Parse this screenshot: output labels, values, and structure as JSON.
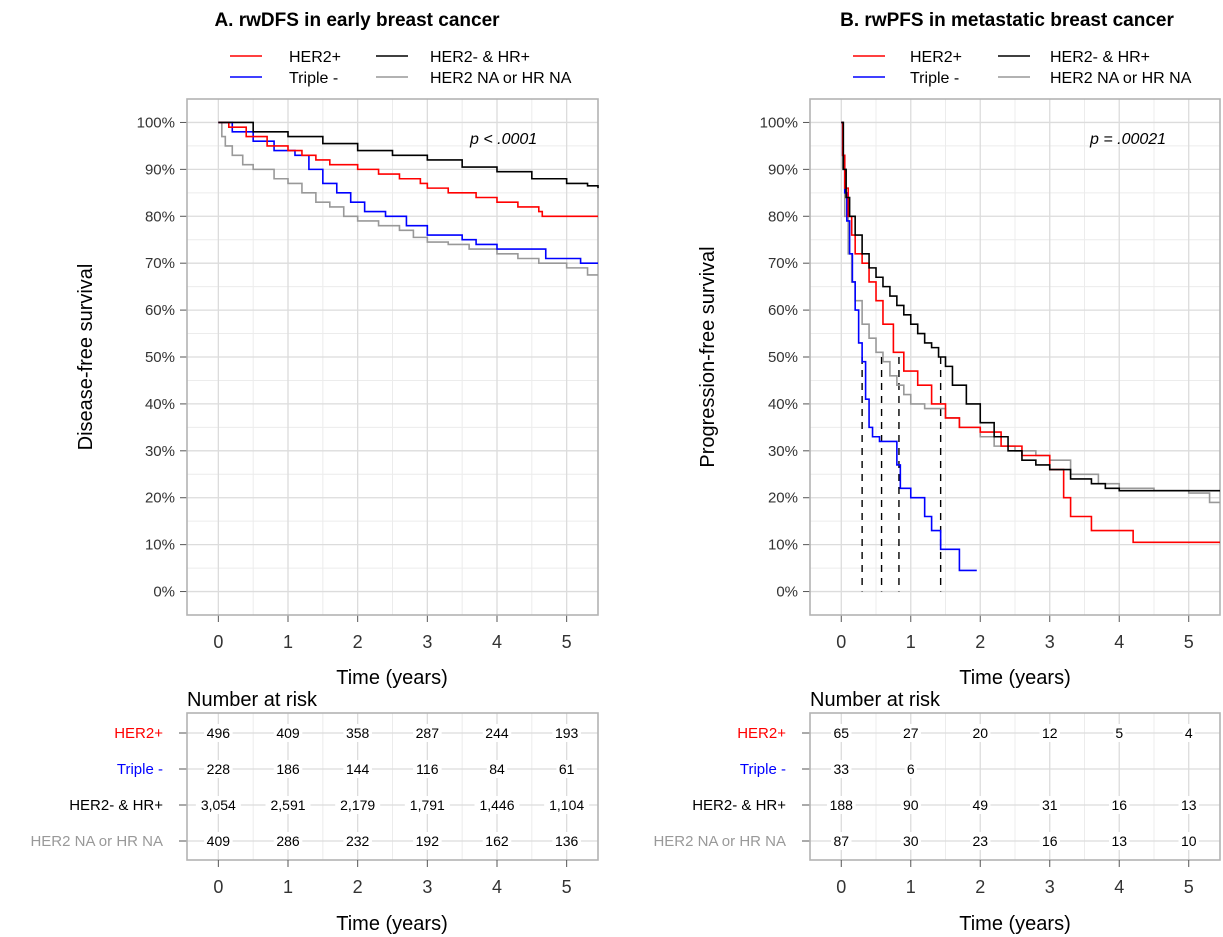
{
  "chart_data": [
    {
      "type": "line",
      "title": "A. rwDFS in early breast cancer",
      "xlabel": "Time (years)",
      "ylabel": "Disease-free survival",
      "xlim": [
        -0.45,
        5.45
      ],
      "ylim": [
        -0.05,
        1.05
      ],
      "x_ticks": [
        "0",
        "1",
        "2",
        "3",
        "4",
        "5"
      ],
      "y_ticks": [
        "0%",
        "10%",
        "20%",
        "30%",
        "40%",
        "50%",
        "60%",
        "70%",
        "80%",
        "90%",
        "100%"
      ],
      "annotation_p": "p < .0001",
      "grid": true,
      "legend_position": "top",
      "series": [
        {
          "name": "HER2+",
          "color": "#ff0000",
          "x": [
            0,
            0.15,
            0.4,
            0.7,
            1.0,
            1.2,
            1.4,
            1.6,
            2.0,
            2.3,
            2.6,
            2.9,
            3.0,
            3.3,
            3.7,
            4.0,
            4.3,
            4.6,
            4.65,
            5.45
          ],
          "y": [
            1.0,
            0.99,
            0.97,
            0.95,
            0.94,
            0.93,
            0.92,
            0.91,
            0.9,
            0.89,
            0.88,
            0.87,
            0.86,
            0.85,
            0.84,
            0.83,
            0.82,
            0.81,
            0.8,
            0.8
          ]
        },
        {
          "name": "Triple -",
          "color": "#0000ff",
          "x": [
            0,
            0.2,
            0.5,
            0.8,
            1.1,
            1.3,
            1.5,
            1.7,
            1.9,
            2.1,
            2.4,
            2.7,
            3.0,
            3.5,
            3.7,
            4.0,
            4.5,
            4.7,
            5.2,
            5.45
          ],
          "y": [
            1.0,
            0.98,
            0.96,
            0.94,
            0.93,
            0.9,
            0.87,
            0.85,
            0.83,
            0.81,
            0.8,
            0.78,
            0.76,
            0.75,
            0.74,
            0.73,
            0.73,
            0.71,
            0.7,
            0.7
          ]
        },
        {
          "name": "HER2- & HR+",
          "color": "#000000",
          "x": [
            0,
            0.5,
            1.0,
            1.5,
            2.0,
            2.5,
            3.0,
            3.5,
            4.0,
            4.5,
            5.0,
            5.3,
            5.45
          ],
          "y": [
            1.0,
            0.98,
            0.97,
            0.955,
            0.94,
            0.93,
            0.92,
            0.905,
            0.895,
            0.88,
            0.87,
            0.865,
            0.86
          ]
        },
        {
          "name": "HER2 NA or HR NA",
          "color": "#999999",
          "x": [
            0,
            0.05,
            0.1,
            0.2,
            0.35,
            0.5,
            0.8,
            1.0,
            1.2,
            1.4,
            1.6,
            1.8,
            2.0,
            2.3,
            2.6,
            2.8,
            3.0,
            3.3,
            3.6,
            4.0,
            4.3,
            4.6,
            5.0,
            5.3,
            5.45
          ],
          "y": [
            1.0,
            0.97,
            0.95,
            0.93,
            0.91,
            0.9,
            0.88,
            0.87,
            0.85,
            0.83,
            0.82,
            0.8,
            0.79,
            0.78,
            0.77,
            0.755,
            0.745,
            0.74,
            0.73,
            0.72,
            0.71,
            0.7,
            0.69,
            0.675,
            0.675
          ]
        }
      ],
      "risk_table": {
        "title": "Number at risk",
        "xlabel": "Time (years)",
        "rows": [
          {
            "label": "HER2+",
            "color": "#ff0000",
            "values": [
              "496",
              "409",
              "358",
              "287",
              "244",
              "193"
            ]
          },
          {
            "label": "Triple -",
            "color": "#0000ff",
            "values": [
              "228",
              "186",
              "144",
              "116",
              "84",
              "61"
            ]
          },
          {
            "label": "HER2- & HR+",
            "color": "#000000",
            "values": [
              "3,054",
              "2,591",
              "2,179",
              "1,791",
              "1,446",
              "1,104"
            ]
          },
          {
            "label": "HER2 NA or HR NA",
            "color": "#999999",
            "values": [
              "409",
              "286",
              "232",
              "192",
              "162",
              "136"
            ]
          }
        ]
      }
    },
    {
      "type": "line",
      "title": "B. rwPFS in metastatic breast cancer",
      "xlabel": "Time (years)",
      "ylabel": "Progression-free survival",
      "xlim": [
        -0.45,
        5.45
      ],
      "ylim": [
        -0.05,
        1.05
      ],
      "x_ticks": [
        "0",
        "1",
        "2",
        "3",
        "4",
        "5"
      ],
      "y_ticks": [
        "0%",
        "10%",
        "20%",
        "30%",
        "40%",
        "50%",
        "60%",
        "70%",
        "80%",
        "90%",
        "100%"
      ],
      "annotation_p": "p = .00021",
      "grid": true,
      "legend_position": "top",
      "median_lines": [
        0.3,
        0.58,
        0.83,
        1.43
      ],
      "series": [
        {
          "name": "HER2+",
          "color": "#ff0000",
          "x": [
            0,
            0.02,
            0.05,
            0.1,
            0.15,
            0.2,
            0.3,
            0.4,
            0.5,
            0.6,
            0.75,
            0.9,
            1.1,
            1.3,
            1.5,
            1.7,
            2.0,
            2.3,
            2.6,
            3.0,
            3.2,
            3.3,
            3.6,
            4.2,
            5.45
          ],
          "y": [
            1.0,
            0.93,
            0.86,
            0.8,
            0.76,
            0.72,
            0.7,
            0.66,
            0.62,
            0.57,
            0.51,
            0.47,
            0.44,
            0.4,
            0.37,
            0.35,
            0.34,
            0.31,
            0.29,
            0.26,
            0.2,
            0.16,
            0.13,
            0.105,
            0.105
          ]
        },
        {
          "name": "Triple -",
          "color": "#0000ff",
          "x": [
            0,
            0.02,
            0.05,
            0.08,
            0.12,
            0.16,
            0.2,
            0.25,
            0.3,
            0.35,
            0.4,
            0.45,
            0.55,
            0.7,
            0.8,
            0.85,
            1.0,
            1.2,
            1.3,
            1.43,
            1.7,
            1.95
          ],
          "y": [
            1.0,
            0.93,
            0.85,
            0.79,
            0.72,
            0.66,
            0.6,
            0.53,
            0.49,
            0.41,
            0.35,
            0.33,
            0.32,
            0.32,
            0.27,
            0.22,
            0.2,
            0.16,
            0.13,
            0.09,
            0.045,
            0.045
          ]
        },
        {
          "name": "HER2- & HR+",
          "color": "#000000",
          "x": [
            0,
            0.03,
            0.07,
            0.12,
            0.2,
            0.3,
            0.4,
            0.5,
            0.6,
            0.7,
            0.8,
            0.9,
            1.0,
            1.1,
            1.2,
            1.3,
            1.4,
            1.5,
            1.6,
            1.8,
            2.0,
            2.2,
            2.4,
            2.6,
            2.8,
            3.0,
            3.3,
            3.6,
            3.8,
            4.0,
            5.45
          ],
          "y": [
            1.0,
            0.9,
            0.84,
            0.8,
            0.76,
            0.72,
            0.69,
            0.67,
            0.65,
            0.63,
            0.61,
            0.59,
            0.57,
            0.55,
            0.53,
            0.52,
            0.5,
            0.48,
            0.44,
            0.4,
            0.36,
            0.33,
            0.3,
            0.28,
            0.27,
            0.26,
            0.24,
            0.23,
            0.22,
            0.215,
            0.215
          ]
        },
        {
          "name": "HER2 NA or HR NA",
          "color": "#999999",
          "x": [
            0,
            0.02,
            0.05,
            0.1,
            0.15,
            0.2,
            0.3,
            0.4,
            0.5,
            0.6,
            0.7,
            0.8,
            0.9,
            1.0,
            1.2,
            1.5,
            1.7,
            2.0,
            2.2,
            2.5,
            2.8,
            3.0,
            3.3,
            3.7,
            4.0,
            4.5,
            5.0,
            5.3,
            5.45
          ],
          "y": [
            1.0,
            0.9,
            0.8,
            0.72,
            0.66,
            0.62,
            0.57,
            0.54,
            0.51,
            0.49,
            0.46,
            0.44,
            0.42,
            0.4,
            0.39,
            0.37,
            0.35,
            0.33,
            0.31,
            0.3,
            0.29,
            0.28,
            0.25,
            0.23,
            0.22,
            0.215,
            0.21,
            0.19,
            0.19
          ]
        }
      ],
      "risk_table": {
        "title": "Number at risk",
        "xlabel": "Time (years)",
        "rows": [
          {
            "label": "HER2+",
            "color": "#ff0000",
            "values": [
              "65",
              "27",
              "20",
              "12",
              "5",
              "4"
            ]
          },
          {
            "label": "Triple -",
            "color": "#0000ff",
            "values": [
              "33",
              "6",
              "",
              "",
              "",
              ""
            ]
          },
          {
            "label": "HER2- & HR+",
            "color": "#000000",
            "values": [
              "188",
              "90",
              "49",
              "31",
              "16",
              "13"
            ]
          },
          {
            "label": "HER2 NA or HR NA",
            "color": "#999999",
            "values": [
              "87",
              "30",
              "23",
              "16",
              "13",
              "10"
            ]
          }
        ]
      }
    }
  ]
}
